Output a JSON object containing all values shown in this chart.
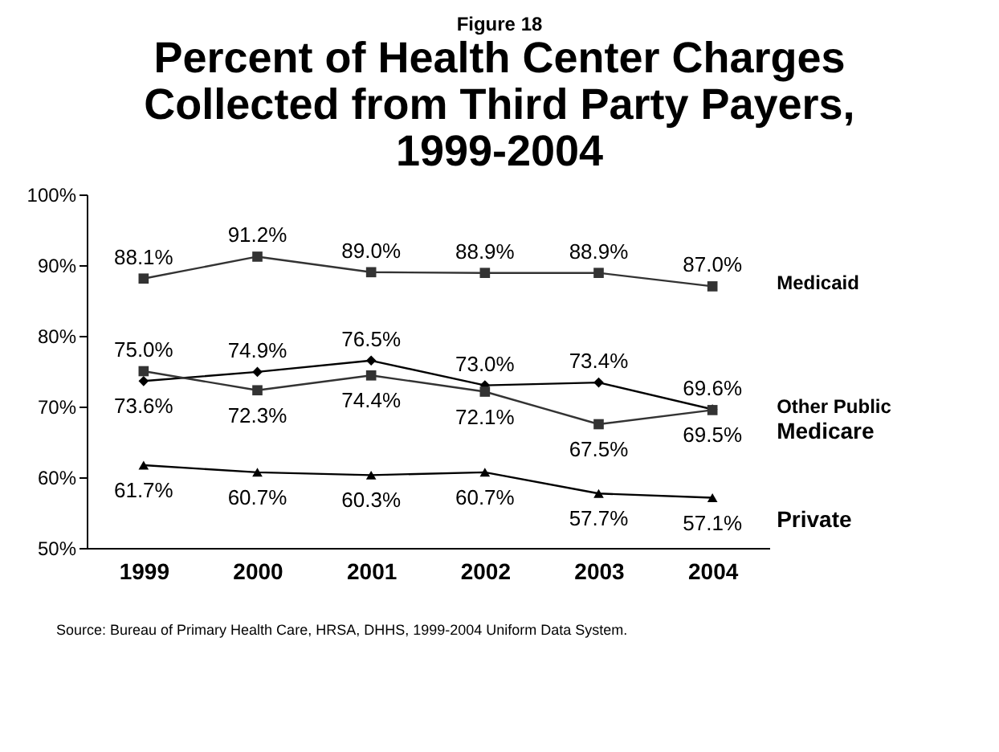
{
  "chart_data": {
    "type": "line",
    "title": "Percent of Health Center Charges Collected from Third Party Payers, 1999-2004",
    "subtitle": "Figure 18",
    "categories": [
      "1999",
      "2000",
      "2001",
      "2002",
      "2003",
      "2004"
    ],
    "series": [
      {
        "name": "Medicaid",
        "color": "#333333",
        "marker": "square",
        "values": [
          88.1,
          91.2,
          89.0,
          88.9,
          88.9,
          87.0
        ],
        "value_labels": [
          "88.1%",
          "91.2%",
          "89.0%",
          "88.9%",
          "88.9%",
          "87.0%"
        ]
      },
      {
        "name": "Other Public",
        "color": "#000000",
        "marker": "diamond",
        "values": [
          73.6,
          74.9,
          76.5,
          73.0,
          73.4,
          69.6
        ],
        "value_labels": [
          "73.6%",
          "74.9%",
          "76.5%",
          "73.0%",
          "73.4%",
          "69.6%"
        ]
      },
      {
        "name": "Medicare",
        "color": "#333333",
        "marker": "square",
        "values": [
          75.0,
          72.3,
          74.4,
          72.1,
          67.5,
          69.5
        ],
        "value_labels": [
          "75.0%",
          "72.3%",
          "74.4%",
          "72.1%",
          "67.5%",
          "69.5%"
        ]
      },
      {
        "name": "Private",
        "color": "#000000",
        "marker": "triangle",
        "values": [
          61.7,
          60.7,
          60.3,
          60.7,
          57.7,
          57.1
        ],
        "value_labels": [
          "61.7%",
          "60.7%",
          "60.3%",
          "60.7%",
          "57.7%",
          "57.1%"
        ]
      }
    ],
    "ylim": [
      50,
      100
    ],
    "yticks": [
      {
        "value": 50,
        "label": "50%"
      },
      {
        "value": 60,
        "label": "60%"
      },
      {
        "value": 70,
        "label": "70%"
      },
      {
        "value": 80,
        "label": "80%"
      },
      {
        "value": 90,
        "label": "90%"
      },
      {
        "value": 100,
        "label": "100%"
      }
    ],
    "grid": false,
    "legend": false,
    "annotations": [
      "Source:  Bureau of Primary Health Care, HRSA, DHHS, 1999-2004 Uniform Data System."
    ]
  }
}
